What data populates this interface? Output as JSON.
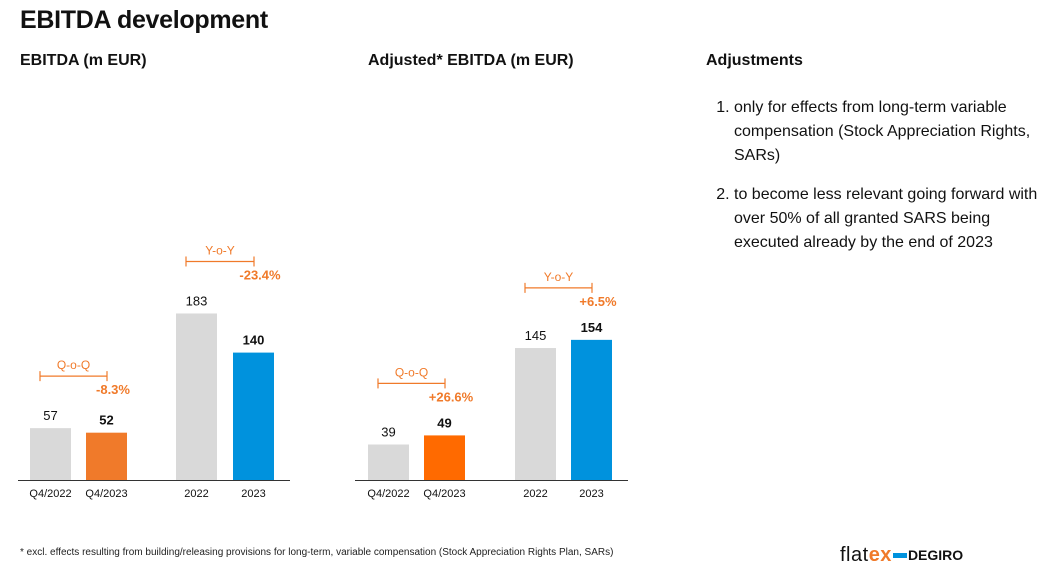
{
  "page": {
    "title": "EBITDA development",
    "footnote": "* excl. effects resulting from building/releasing provisions for long-term, variable compensation (Stock Appreciation Rights Plan, SARs)"
  },
  "logo": {
    "part1": "flat",
    "part2": "ex",
    "part3": "DEGIRO"
  },
  "adjustments": {
    "title": "Adjustments",
    "items": [
      "only for effects from long-term variable compensation (Stock Appreciation Rights, SARs)",
      "to become less relevant going forward with over 50% of all granted SARS being executed already by the end of 2023"
    ]
  },
  "colors": {
    "grey": "#d9d9d9",
    "orange": "#f07a2a",
    "orange_adj": "#ff6a00",
    "blue": "#0092dd",
    "accent_text": "#f07a2a"
  },
  "chart_data": [
    {
      "type": "bar",
      "title": "EBITDA (m EUR)",
      "categories": [
        "Q4/2022",
        "Q4/2023",
        "2022",
        "2023"
      ],
      "values": [
        57,
        52,
        183,
        140
      ],
      "value_labels": [
        "57",
        "52",
        "183",
        "140"
      ],
      "bold_labels": [
        false,
        true,
        false,
        true
      ],
      "bar_colors": [
        "grey",
        "orange",
        "grey",
        "blue"
      ],
      "ylim": [
        0,
        200
      ],
      "comparisons": [
        {
          "label": "Q-o-Q",
          "change": "-8.3%"
        },
        {
          "label": "Y-o-Y",
          "change": "-23.4%"
        }
      ]
    },
    {
      "type": "bar",
      "title": "Adjusted* EBITDA  (m EUR)",
      "categories": [
        "Q4/2022",
        "Q4/2023",
        "2022",
        "2023"
      ],
      "values": [
        39,
        49,
        145,
        154
      ],
      "value_labels": [
        "39",
        "49",
        "145",
        "154"
      ],
      "bold_labels": [
        false,
        true,
        false,
        true
      ],
      "bar_colors": [
        "grey",
        "orange_adj",
        "grey",
        "blue"
      ],
      "ylim": [
        0,
        200
      ],
      "comparisons": [
        {
          "label": "Q-o-Q",
          "change": "+26.6%"
        },
        {
          "label": "Y-o-Y",
          "change": "+6.5%"
        }
      ]
    }
  ]
}
